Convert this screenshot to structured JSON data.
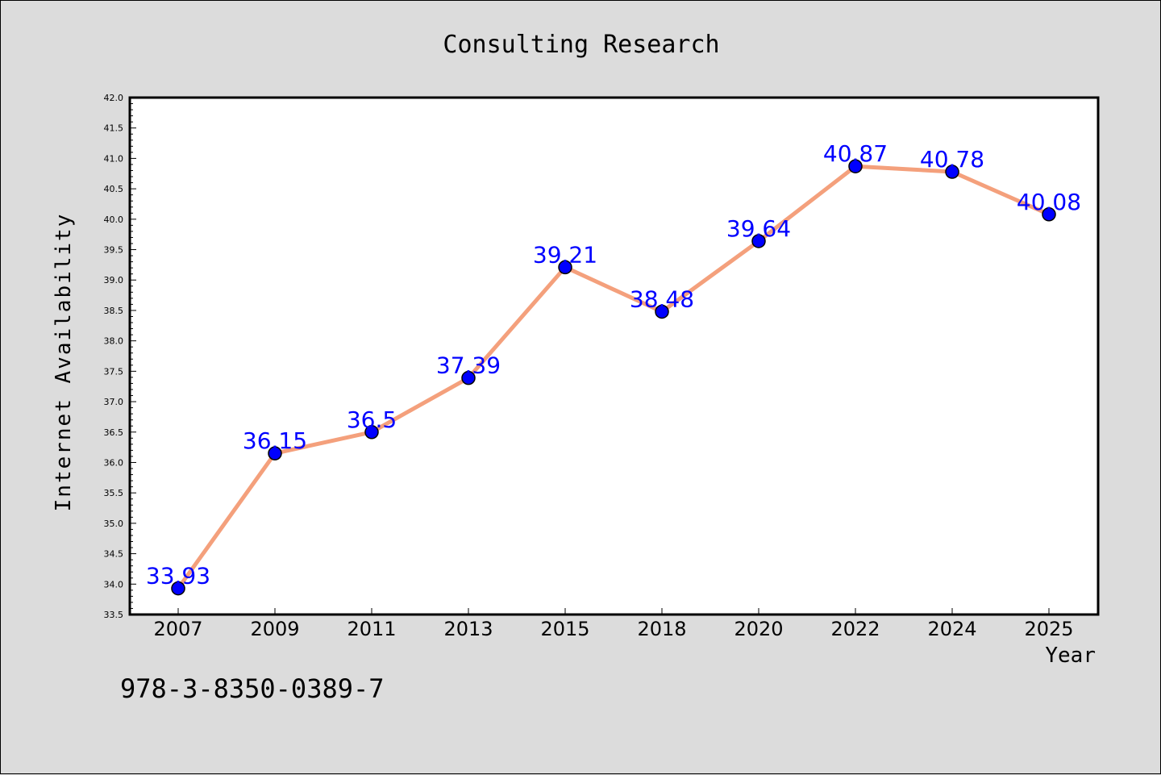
{
  "chart_data": {
    "type": "line",
    "title": "Consulting Research",
    "xlabel": "Year",
    "ylabel": "Internet Availability",
    "categories": [
      "2007",
      "2009",
      "2011",
      "2013",
      "2015",
      "2018",
      "2020",
      "2022",
      "2024",
      "2025"
    ],
    "series": [
      {
        "values": [
          33.93,
          36.15,
          36.5,
          37.39,
          39.21,
          38.48,
          39.64,
          40.87,
          40.78,
          40.08
        ],
        "data_labels": [
          "33.93",
          "36.15",
          "36.5",
          "37.39",
          "39.21",
          "38.48",
          "39.64",
          "40.87",
          "40.78",
          "40.08"
        ],
        "line_color": "#f4a07c",
        "marker_color": "#0000ff",
        "label_color": "#0000ff"
      }
    ],
    "ylim": [
      33.5,
      42.0
    ],
    "yticks": [
      "33.5",
      "34.0",
      "34.5",
      "35.0",
      "35.5",
      "36.0",
      "36.5",
      "37.0",
      "37.5",
      "38.0",
      "38.5",
      "39.0",
      "39.5",
      "40.0",
      "40.5",
      "41.0",
      "41.5",
      "42.0"
    ],
    "grid": false,
    "annotation": "978-3-8350-0389-7",
    "background": "#dcdcdc",
    "plot_background": "#ffffff"
  }
}
